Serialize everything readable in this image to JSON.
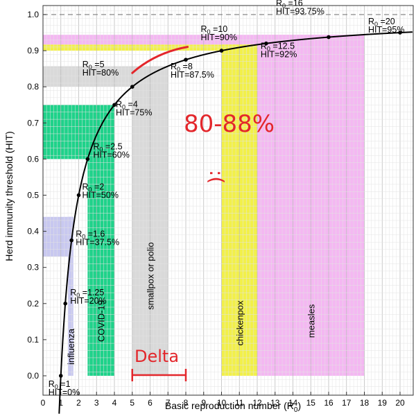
{
  "chart_data": {
    "type": "line",
    "xlabel": "Basic reproduction number (R",
    "xlabel_sub": "0",
    "xlabel_end": ")",
    "ylabel": "Herd immunity threshold (HIT)",
    "xlim": [
      -1,
      21
    ],
    "ylim": [
      -0.1,
      1.05
    ],
    "x_ticks": [
      0,
      1,
      2,
      3,
      4,
      5,
      6,
      7,
      8,
      9,
      10,
      11,
      12,
      13,
      14,
      15,
      16,
      17,
      18,
      19,
      20
    ],
    "y_ticks": [
      "0.0",
      "0.1",
      "0.2",
      "0.3",
      "0.4",
      "0.5",
      "0.6",
      "0.7",
      "0.8",
      "0.9",
      "1.0"
    ],
    "y_tick_values": [
      0,
      0.1,
      0.2,
      0.3,
      0.4,
      0.5,
      0.6,
      0.7,
      0.8,
      0.9,
      1.0
    ],
    "grid": true,
    "asymptote": 1.0,
    "curve": "HIT = 1 - 1/R0",
    "vertical_bands": [
      {
        "label": "influenza",
        "x0": 1.4,
        "x1": 1.7,
        "color": "#c8c8f0"
      },
      {
        "label": "COVID-19",
        "x0": 2.5,
        "x1": 4.0,
        "color": "#1fd28a"
      },
      {
        "label": "smallpox or polio",
        "x0": 5.0,
        "x1": 7.0,
        "color": "#d9d9d9"
      },
      {
        "label": "chickenpox",
        "x0": 10.0,
        "x1": 12.0,
        "color": "#f2f04a"
      },
      {
        "label": "measles",
        "x0": 12.0,
        "x1": 18.0,
        "color": "#f4b8f2"
      }
    ],
    "horizontal_bands": [
      {
        "y0": 0.6,
        "y1": 0.75,
        "x1": 4.0,
        "color": "#1fd28a"
      },
      {
        "y0": 0.33,
        "y1": 0.44,
        "x1": 1.7,
        "color": "#c8c8f0"
      },
      {
        "y0": 0.8,
        "y1": 0.857,
        "x1": 7.0,
        "color": "#d9d9d9"
      },
      {
        "y0": 0.9,
        "y1": 0.917,
        "x1": 12.0,
        "color": "#f2f04a"
      },
      {
        "y0": 0.917,
        "y1": 0.944,
        "x1": 18.0,
        "color": "#f4b8f2"
      }
    ],
    "points": [
      {
        "r0": "1",
        "hit": "0%",
        "x": 1,
        "y": 0.0
      },
      {
        "r0": "1.25",
        "hit": "20%",
        "x": 1.25,
        "y": 0.2
      },
      {
        "r0": "1.6",
        "hit": "37.5%",
        "x": 1.6,
        "y": 0.375
      },
      {
        "r0": "2",
        "hit": "50%",
        "x": 2,
        "y": 0.5
      },
      {
        "r0": "2.5",
        "hit": "60%",
        "x": 2.5,
        "y": 0.6
      },
      {
        "r0": "4",
        "hit": "75%",
        "x": 4,
        "y": 0.75
      },
      {
        "r0": "5",
        "hit": "80%",
        "x": 5,
        "y": 0.8
      },
      {
        "r0": "8",
        "hit": "87.5%",
        "x": 8,
        "y": 0.875
      },
      {
        "r0": "10",
        "hit": "90%",
        "x": 10,
        "y": 0.9
      },
      {
        "r0": "12.5",
        "hit": "92%",
        "x": 12.5,
        "y": 0.92
      },
      {
        "r0": "16",
        "hit": "93.75%",
        "x": 16,
        "y": 0.9375
      },
      {
        "r0": "20",
        "hit": "95%",
        "x": 20,
        "y": 0.95
      }
    ],
    "label_prefix_r": "R",
    "label_sub": "0",
    "label_eq": " =",
    "label_hit": "HIT=",
    "annotations": {
      "range_text": "80-88%",
      "face_text": ":(",
      "delta_text": "Delta",
      "color": "#e3262b",
      "delta_range": [
        5,
        8
      ],
      "highlight_range": [
        5,
        8
      ]
    }
  }
}
